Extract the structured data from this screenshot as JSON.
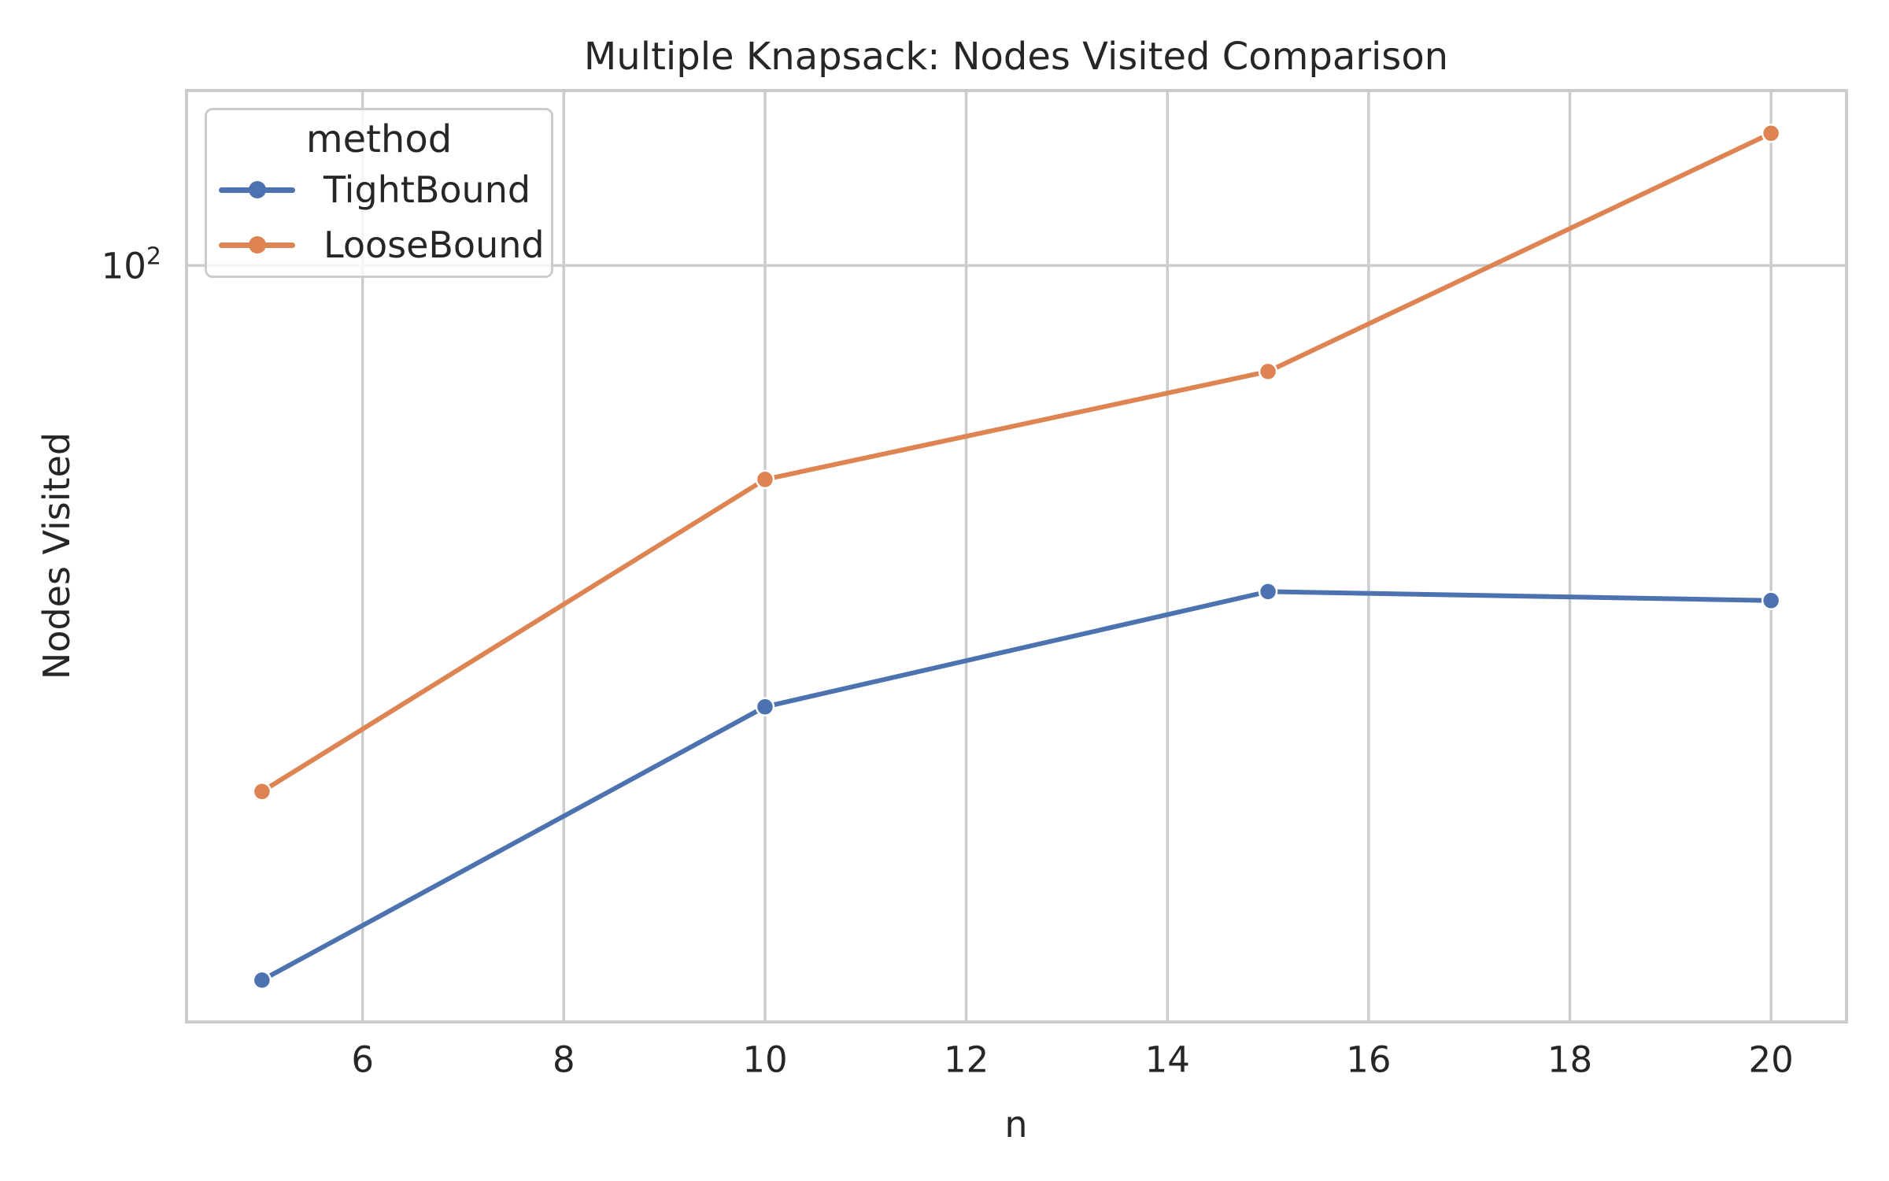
{
  "chart_data": {
    "type": "line",
    "title": "Multiple Knapsack: Nodes Visited Comparison",
    "xlabel": "n",
    "ylabel": "Nodes Visited",
    "x": [
      5,
      10,
      15,
      20
    ],
    "series": [
      {
        "name": "TightBound",
        "color": "#4C72B0",
        "values": [
          12,
          27,
          38,
          37
        ]
      },
      {
        "name": "LooseBound",
        "color": "#DD8452",
        "values": [
          21,
          53,
          73,
          148
        ]
      }
    ],
    "legend_title": "method",
    "legend_position": "upper left",
    "yscale": "log",
    "xlim": [
      4.25,
      20.75
    ],
    "ylim": [
      10.6,
      168
    ],
    "xticks": [
      6,
      8,
      10,
      12,
      14,
      16,
      18,
      20
    ],
    "yticks": [
      {
        "value": 100,
        "base": "10",
        "exp": "2"
      }
    ],
    "grid": true,
    "colors": {
      "grid": "#CCCCCC",
      "spine": "#CCCCCC",
      "text": "#262626",
      "background": "#FFFFFF"
    }
  }
}
